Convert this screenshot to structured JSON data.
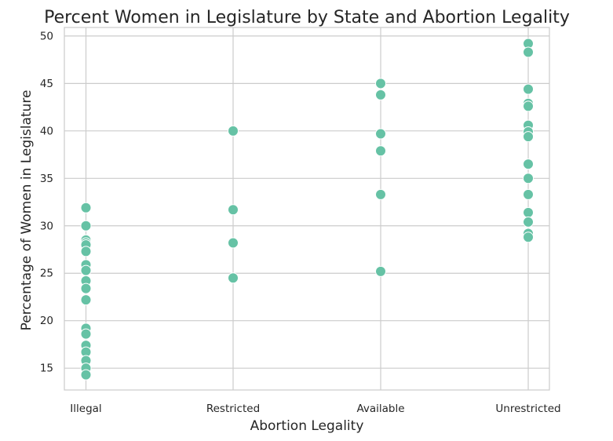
{
  "chart_data": {
    "type": "scatter",
    "title": "Percent Women in Legislature by State and Abortion Legality",
    "xlabel": "Abortion Legality",
    "ylabel": "Percentage of Women in Legislature",
    "categories": [
      "Illegal",
      "Restricted",
      "Available",
      "Unrestricted"
    ],
    "ylim": [
      12.7,
      50.9
    ],
    "yticks": [
      15,
      20,
      25,
      30,
      35,
      40,
      45,
      50
    ],
    "grid": true,
    "marker_color": "#66c2a5",
    "points": [
      {
        "x": "Illegal",
        "y": 31.9
      },
      {
        "x": "Illegal",
        "y": 30.0
      },
      {
        "x": "Illegal",
        "y": 28.5
      },
      {
        "x": "Illegal",
        "y": 28.2
      },
      {
        "x": "Illegal",
        "y": 28.0
      },
      {
        "x": "Illegal",
        "y": 27.3
      },
      {
        "x": "Illegal",
        "y": 25.9
      },
      {
        "x": "Illegal",
        "y": 25.3
      },
      {
        "x": "Illegal",
        "y": 24.2
      },
      {
        "x": "Illegal",
        "y": 23.4
      },
      {
        "x": "Illegal",
        "y": 22.2
      },
      {
        "x": "Illegal",
        "y": 19.2
      },
      {
        "x": "Illegal",
        "y": 18.6
      },
      {
        "x": "Illegal",
        "y": 17.4
      },
      {
        "x": "Illegal",
        "y": 16.7
      },
      {
        "x": "Illegal",
        "y": 15.8
      },
      {
        "x": "Illegal",
        "y": 15.0
      },
      {
        "x": "Illegal",
        "y": 14.3
      },
      {
        "x": "Restricted",
        "y": 40.0
      },
      {
        "x": "Restricted",
        "y": 31.7
      },
      {
        "x": "Restricted",
        "y": 28.2
      },
      {
        "x": "Restricted",
        "y": 24.5
      },
      {
        "x": "Available",
        "y": 45.0
      },
      {
        "x": "Available",
        "y": 43.8
      },
      {
        "x": "Available",
        "y": 39.7
      },
      {
        "x": "Available",
        "y": 37.9
      },
      {
        "x": "Available",
        "y": 33.3
      },
      {
        "x": "Available",
        "y": 25.2
      },
      {
        "x": "Unrestricted",
        "y": 49.2
      },
      {
        "x": "Unrestricted",
        "y": 48.3
      },
      {
        "x": "Unrestricted",
        "y": 44.4
      },
      {
        "x": "Unrestricted",
        "y": 42.9
      },
      {
        "x": "Unrestricted",
        "y": 42.6
      },
      {
        "x": "Unrestricted",
        "y": 40.6
      },
      {
        "x": "Unrestricted",
        "y": 39.9
      },
      {
        "x": "Unrestricted",
        "y": 39.4
      },
      {
        "x": "Unrestricted",
        "y": 36.5
      },
      {
        "x": "Unrestricted",
        "y": 35.0
      },
      {
        "x": "Unrestricted",
        "y": 33.3
      },
      {
        "x": "Unrestricted",
        "y": 31.4
      },
      {
        "x": "Unrestricted",
        "y": 30.4
      },
      {
        "x": "Unrestricted",
        "y": 29.2
      },
      {
        "x": "Unrestricted",
        "y": 28.8
      }
    ]
  }
}
